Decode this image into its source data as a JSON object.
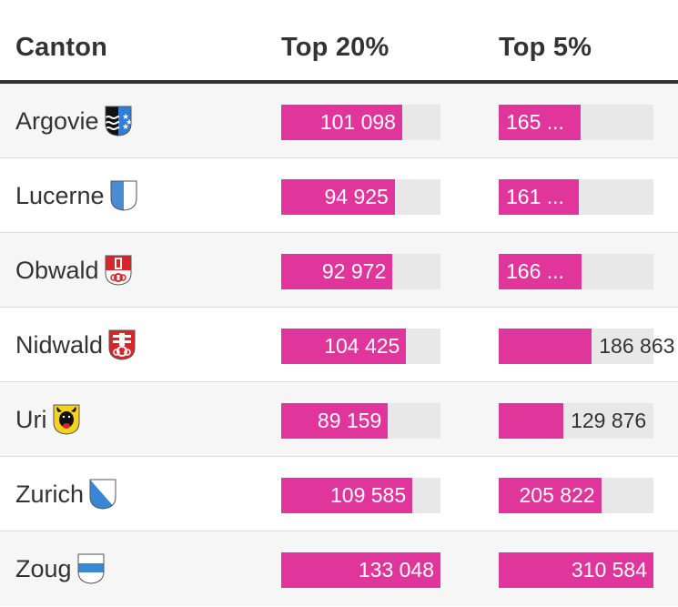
{
  "header": {
    "canton": "Canton",
    "top20": "Top 20%",
    "top5": "Top 5%"
  },
  "chart_data": {
    "type": "table",
    "title": "",
    "columns": [
      "Canton",
      "Top 20%",
      "Top 5%"
    ],
    "series": [
      {
        "name": "Top 20%",
        "max": 133048
      },
      {
        "name": "Top 5%",
        "max": 310584
      }
    ],
    "rows": [
      {
        "canton": "Argovie",
        "flag": "argovie-flag-icon",
        "top20": 101098,
        "top20_label": "101 098",
        "top5": 165000,
        "top5_label": "165 ..."
      },
      {
        "canton": "Lucerne",
        "flag": "lucerne-flag-icon",
        "top20": 94925,
        "top20_label": "94 925",
        "top5": 161000,
        "top5_label": "161 ..."
      },
      {
        "canton": "Obwald",
        "flag": "obwald-flag-icon",
        "top20": 92972,
        "top20_label": "92 972",
        "top5": 166000,
        "top5_label": "166 ..."
      },
      {
        "canton": "Nidwald",
        "flag": "nidwald-flag-icon",
        "top20": 104425,
        "top20_label": "104 425",
        "top5": 186863,
        "top5_label": "186 863"
      },
      {
        "canton": "Uri",
        "flag": "uri-flag-icon",
        "top20": 89159,
        "top20_label": "89 159",
        "top5": 129876,
        "top5_label": "129 876"
      },
      {
        "canton": "Zurich",
        "flag": "zurich-flag-icon",
        "top20": 109585,
        "top20_label": "109 585",
        "top5": 205822,
        "top5_label": "205 822"
      },
      {
        "canton": "Zoug",
        "flag": "zoug-flag-icon",
        "top20": 133048,
        "top20_label": "133 048",
        "top5": 310584,
        "top5_label": "310 584"
      }
    ]
  },
  "colors": {
    "bar": "#e0359a",
    "track": "#e8e8e8"
  }
}
